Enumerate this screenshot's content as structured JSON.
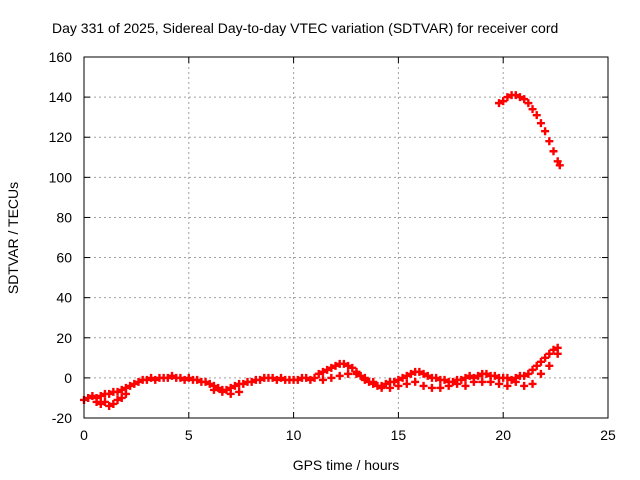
{
  "chart_data": {
    "type": "scatter",
    "title": "Day 331 of 2025, Sidereal Day-to-day VTEC variation (SDTVAR) for receiver cord",
    "xlabel": "GPS time / hours",
    "ylabel": "SDTVAR / TECUs",
    "xlim": [
      0,
      25
    ],
    "ylim": [
      -20,
      160
    ],
    "xticks": [
      0,
      5,
      10,
      15,
      20,
      25
    ],
    "yticks": [
      -20,
      0,
      20,
      40,
      60,
      80,
      100,
      120,
      140,
      160
    ],
    "grid": true,
    "marker": "plus",
    "color": "#ff0000",
    "series": [
      {
        "name": "main-band",
        "points": [
          [
            0.0,
            -11
          ],
          [
            0.2,
            -10
          ],
          [
            0.4,
            -9
          ],
          [
            0.6,
            -10
          ],
          [
            0.8,
            -9
          ],
          [
            1.0,
            -8
          ],
          [
            1.2,
            -8
          ],
          [
            1.4,
            -7
          ],
          [
            1.6,
            -7
          ],
          [
            1.8,
            -6
          ],
          [
            2.0,
            -5
          ],
          [
            2.2,
            -4
          ],
          [
            2.4,
            -3
          ],
          [
            2.6,
            -2
          ],
          [
            2.8,
            -1
          ],
          [
            3.0,
            -1
          ],
          [
            3.2,
            0
          ],
          [
            3.4,
            -1
          ],
          [
            3.6,
            0
          ],
          [
            3.8,
            0
          ],
          [
            4.0,
            0
          ],
          [
            4.2,
            1
          ],
          [
            4.4,
            0
          ],
          [
            4.6,
            0
          ],
          [
            4.8,
            -1
          ],
          [
            5.0,
            0
          ],
          [
            5.2,
            -1
          ],
          [
            5.4,
            -1
          ],
          [
            5.6,
            -2
          ],
          [
            5.8,
            -2
          ],
          [
            6.0,
            -3
          ],
          [
            6.2,
            -4
          ],
          [
            6.4,
            -5
          ],
          [
            6.6,
            -6
          ],
          [
            6.8,
            -6
          ],
          [
            7.0,
            -5
          ],
          [
            7.2,
            -4
          ],
          [
            7.4,
            -3
          ],
          [
            7.6,
            -3
          ],
          [
            7.8,
            -2
          ],
          [
            8.0,
            -2
          ],
          [
            8.2,
            -1
          ],
          [
            8.4,
            -1
          ],
          [
            8.6,
            0
          ],
          [
            8.8,
            0
          ],
          [
            9.0,
            0
          ],
          [
            9.2,
            -1
          ],
          [
            9.4,
            0
          ],
          [
            9.6,
            -1
          ],
          [
            9.8,
            -1
          ],
          [
            10.0,
            -1
          ],
          [
            10.2,
            -1
          ],
          [
            10.4,
            0
          ],
          [
            10.6,
            0
          ],
          [
            10.8,
            -1
          ],
          [
            11.0,
            0
          ],
          [
            11.2,
            2
          ],
          [
            11.4,
            3
          ],
          [
            11.6,
            4
          ],
          [
            11.8,
            5
          ],
          [
            12.0,
            6
          ],
          [
            12.2,
            7
          ],
          [
            12.4,
            7
          ],
          [
            12.6,
            6
          ],
          [
            12.8,
            5
          ],
          [
            13.0,
            3
          ],
          [
            13.2,
            1
          ],
          [
            13.4,
            -1
          ],
          [
            13.6,
            -2
          ],
          [
            13.8,
            -3
          ],
          [
            14.0,
            -4
          ],
          [
            14.2,
            -4
          ],
          [
            14.4,
            -3
          ],
          [
            14.6,
            -2
          ],
          [
            14.8,
            -2
          ],
          [
            15.0,
            -1
          ],
          [
            15.2,
            0
          ],
          [
            15.4,
            1
          ],
          [
            15.6,
            2
          ],
          [
            15.8,
            3
          ],
          [
            16.0,
            3
          ],
          [
            16.2,
            2
          ],
          [
            16.4,
            1
          ],
          [
            16.6,
            0
          ],
          [
            16.8,
            0
          ],
          [
            17.0,
            -1
          ],
          [
            17.2,
            -1
          ],
          [
            17.4,
            -2
          ],
          [
            17.6,
            -2
          ],
          [
            17.8,
            -1
          ],
          [
            18.0,
            -1
          ],
          [
            18.2,
            0
          ],
          [
            18.4,
            1
          ],
          [
            18.6,
            0
          ],
          [
            18.8,
            1
          ],
          [
            19.0,
            2
          ],
          [
            19.2,
            2
          ],
          [
            19.4,
            1
          ],
          [
            19.6,
            1
          ],
          [
            19.8,
            0
          ],
          [
            20.0,
            0
          ],
          [
            20.2,
            0
          ],
          [
            20.4,
            -1
          ],
          [
            20.6,
            0
          ],
          [
            20.8,
            1
          ],
          [
            21.0,
            1
          ],
          [
            21.2,
            2
          ],
          [
            21.4,
            4
          ],
          [
            21.6,
            6
          ],
          [
            21.8,
            8
          ],
          [
            22.0,
            10
          ],
          [
            22.2,
            12
          ],
          [
            22.4,
            14
          ],
          [
            22.6,
            15
          ]
        ]
      },
      {
        "name": "secondary-band",
        "points": [
          [
            0.6,
            -12
          ],
          [
            0.8,
            -13
          ],
          [
            1.0,
            -12
          ],
          [
            1.2,
            -14
          ],
          [
            1.4,
            -13
          ],
          [
            1.6,
            -11
          ],
          [
            1.8,
            -10
          ],
          [
            2.0,
            -8
          ],
          [
            6.2,
            -6
          ],
          [
            6.6,
            -7
          ],
          [
            7.0,
            -8
          ],
          [
            7.4,
            -7
          ],
          [
            11.4,
            -1
          ],
          [
            11.8,
            0
          ],
          [
            12.2,
            1
          ],
          [
            12.6,
            2
          ],
          [
            13.0,
            2
          ],
          [
            13.4,
            0
          ],
          [
            13.8,
            -2
          ],
          [
            14.2,
            -5
          ],
          [
            14.6,
            -5
          ],
          [
            15.0,
            -4
          ],
          [
            15.4,
            -3
          ],
          [
            15.8,
            -2
          ],
          [
            16.2,
            -4
          ],
          [
            16.6,
            -5
          ],
          [
            17.0,
            -5
          ],
          [
            17.4,
            -4
          ],
          [
            17.8,
            -3
          ],
          [
            18.2,
            -4
          ],
          [
            18.6,
            -2
          ],
          [
            19.0,
            -2
          ],
          [
            19.4,
            -2
          ],
          [
            19.8,
            -3
          ],
          [
            20.2,
            -4
          ],
          [
            20.6,
            -2
          ],
          [
            21.0,
            -4
          ],
          [
            21.4,
            -3
          ],
          [
            21.8,
            2
          ],
          [
            22.2,
            6
          ],
          [
            22.6,
            12
          ]
        ]
      },
      {
        "name": "high-outlier-arc",
        "points": [
          [
            19.8,
            137
          ],
          [
            20.0,
            138
          ],
          [
            20.2,
            140
          ],
          [
            20.4,
            141
          ],
          [
            20.6,
            141
          ],
          [
            20.8,
            140
          ],
          [
            21.0,
            139
          ],
          [
            21.2,
            137
          ],
          [
            21.4,
            134
          ],
          [
            21.6,
            131
          ],
          [
            21.8,
            127
          ],
          [
            22.0,
            123
          ],
          [
            22.2,
            118
          ],
          [
            22.4,
            113
          ],
          [
            22.6,
            108
          ],
          [
            22.7,
            106
          ]
        ]
      }
    ]
  }
}
